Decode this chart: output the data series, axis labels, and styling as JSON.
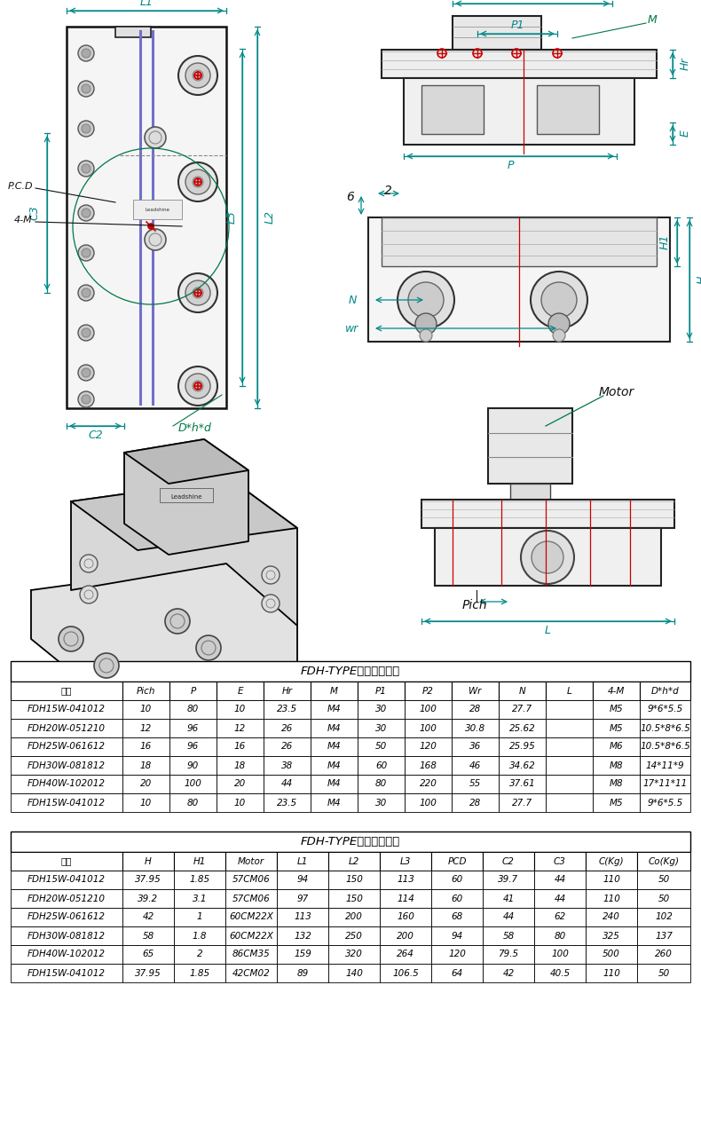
{
  "table1_title": "FDH-TYPE滚轮直线导轨",
  "table1_headers": [
    "规格",
    "Pich",
    "P",
    "E",
    "Hr",
    "M",
    "P1",
    "P2",
    "Wr",
    "N",
    "L",
    "4-M",
    "D*h*d"
  ],
  "table1_rows": [
    [
      "FDH15W-041012",
      "10",
      "80",
      "10",
      "23.5",
      "M4",
      "30",
      "100",
      "28",
      "27.7",
      "",
      "M5",
      "9*6*5.5"
    ],
    [
      "FDH20W-051210",
      "12",
      "96",
      "12",
      "26",
      "M4",
      "30",
      "100",
      "30.8",
      "25.62",
      "",
      "M5",
      "10.5*8*6.5"
    ],
    [
      "FDH25W-061612",
      "16",
      "96",
      "16",
      "26",
      "M4",
      "50",
      "120",
      "36",
      "25.95",
      "",
      "M6",
      "10.5*8*6.5"
    ],
    [
      "FDH30W-081812",
      "18",
      "90",
      "18",
      "38",
      "M4",
      "60",
      "168",
      "46",
      "34.62",
      "",
      "M8",
      "14*11*9"
    ],
    [
      "FDH40W-102012",
      "20",
      "100",
      "20",
      "44",
      "M4",
      "80",
      "220",
      "55",
      "37.61",
      "",
      "M8",
      "17*11*11"
    ],
    [
      "FDH15W-041012",
      "10",
      "80",
      "10",
      "23.5",
      "M4",
      "30",
      "100",
      "28",
      "27.7",
      "",
      "M5",
      "9*6*5.5"
    ]
  ],
  "table2_title": "FDH-TYPE滚轮直线导轨",
  "table2_headers": [
    "规格",
    "H",
    "H1",
    "Motor",
    "L1",
    "L2",
    "L3",
    "PCD",
    "C2",
    "C3",
    "C(Kg)",
    "Co(Kg)"
  ],
  "table2_rows": [
    [
      "FDH15W-041012",
      "37.95",
      "1.85",
      "57CM06",
      "94",
      "150",
      "113",
      "60",
      "39.7",
      "44",
      "110",
      "50"
    ],
    [
      "FDH20W-051210",
      "39.2",
      "3.1",
      "57CM06",
      "97",
      "150",
      "114",
      "60",
      "41",
      "44",
      "110",
      "50"
    ],
    [
      "FDH25W-061612",
      "42",
      "1",
      "60CM22X",
      "113",
      "200",
      "160",
      "68",
      "44",
      "62",
      "240",
      "102"
    ],
    [
      "FDH30W-081812",
      "58",
      "1.8",
      "60CM22X",
      "132",
      "250",
      "200",
      "94",
      "58",
      "80",
      "325",
      "137"
    ],
    [
      "FDH40W-102012",
      "65",
      "2",
      "86CM35",
      "159",
      "320",
      "264",
      "120",
      "79.5",
      "100",
      "500",
      "260"
    ],
    [
      "FDH15W-041012",
      "37.95",
      "1.85",
      "42CM02",
      "89",
      "140",
      "106.5",
      "64",
      "42",
      "40.5",
      "110",
      "50"
    ]
  ],
  "bg_color": "#ffffff",
  "teal_color": "#008888",
  "red_color": "#cc0000",
  "blue_color": "#7070cc",
  "green_color": "#007744"
}
